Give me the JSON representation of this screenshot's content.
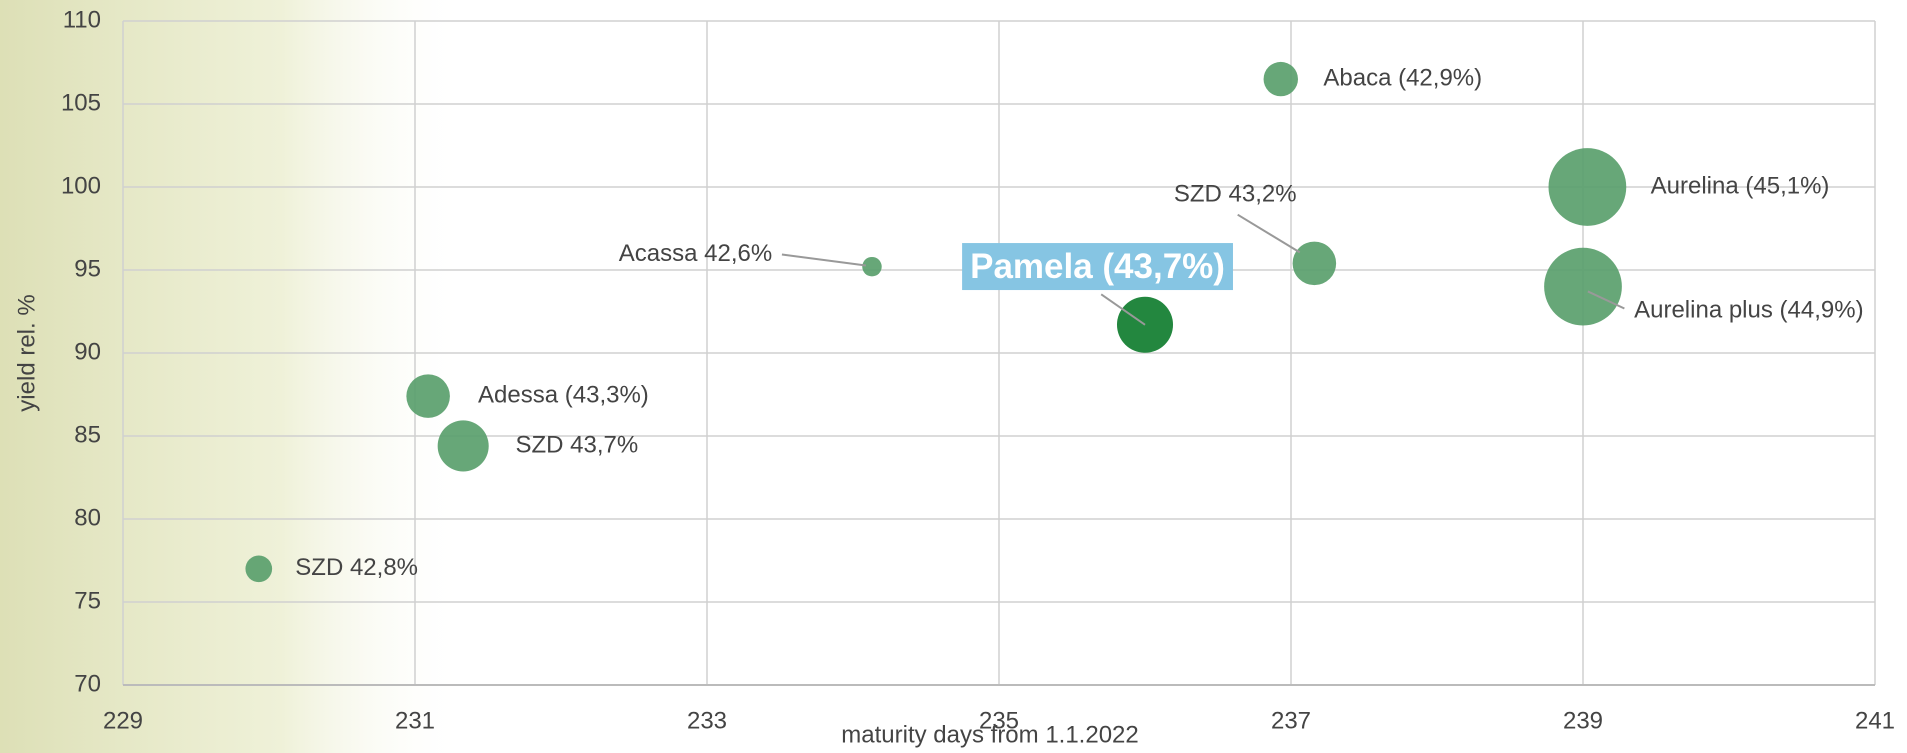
{
  "chart_data": {
    "type": "bubble",
    "x_label": "maturity days from 1.1.2022",
    "y_label": "yield rel. %",
    "labels": [
      "SZD 42,8%",
      "Adessa (43,3%)",
      "SZD 43,7%",
      "Acassa 42,6%",
      "Pamela (43,7%)",
      "Abaca (42,9%)",
      "SZD 43,2%",
      "Aurelina (45,1%)",
      "Aurelina plus (44,9%)"
    ],
    "x": [
      229.93,
      231.09,
      231.33,
      234.13,
      236.0,
      236.93,
      237.16,
      239.03,
      239.0
    ],
    "y": [
      77.0,
      87.4,
      84.4,
      95.2,
      91.7,
      106.5,
      95.4,
      100.0,
      94.0
    ],
    "sizes": [
      1.2,
      3.2,
      4.4,
      0.64,
      5.3,
      2.0,
      3.2,
      10.2,
      10.2
    ],
    "colors": [
      "#5a9f6d",
      "#5a9f6d",
      "#5a9f6d",
      "#5a9f6d",
      "#23873f",
      "#5a9f6d",
      "#5a9f6d",
      "#5a9f6d",
      "#5a9f6d"
    ],
    "xlim": [
      229,
      241
    ],
    "xticks": [
      229,
      231,
      233,
      235,
      237,
      239,
      241
    ],
    "ylim": [
      70,
      110
    ],
    "yticks": [
      70,
      75,
      80,
      85,
      90,
      95,
      100,
      105,
      110
    ],
    "grid": true
  }
}
